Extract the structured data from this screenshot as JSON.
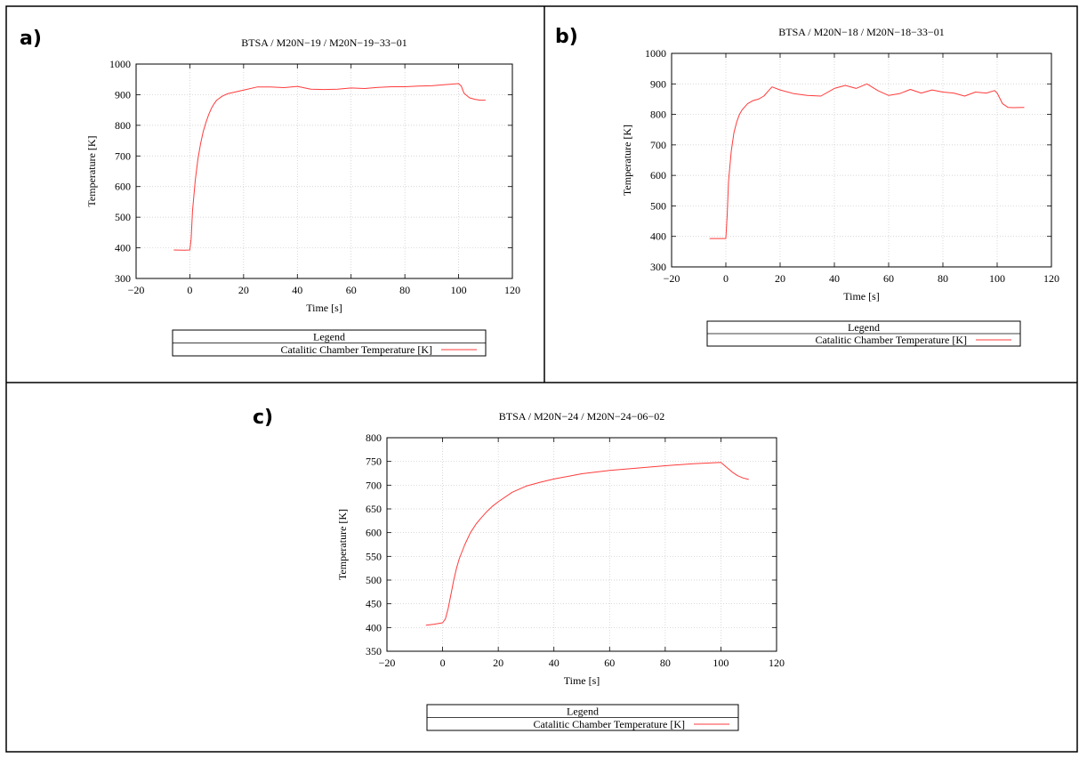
{
  "colors": {
    "series": "#ff3b3b",
    "grid": "#c8c8c8",
    "frame": "#000000"
  },
  "chart_data": [
    {
      "type": "line",
      "panel": "a)",
      "title": "BTSA / M20N−19 / M20N−19−33−01",
      "xlabel": "Time [s]",
      "ylabel": "Temperature [K]",
      "xlim": [
        -20,
        120
      ],
      "ylim": [
        300,
        1000
      ],
      "xticks": [
        -20,
        0,
        20,
        40,
        60,
        80,
        100,
        120
      ],
      "yticks": [
        300,
        400,
        500,
        600,
        700,
        800,
        900,
        1000
      ],
      "grid": true,
      "legend": {
        "title": "Legend",
        "position": "bottom",
        "entries": [
          "Catalitic Chamber Temperature [K]"
        ]
      },
      "series": [
        {
          "name": "Catalitic Chamber Temperature [K]",
          "x": [
            -6,
            -2,
            0,
            0.5,
            1,
            2,
            3,
            4,
            5,
            6,
            7,
            8,
            9,
            10,
            12,
            14,
            16,
            18,
            20,
            25,
            30,
            35,
            40,
            45,
            50,
            55,
            60,
            65,
            70,
            75,
            80,
            85,
            90,
            95,
            100,
            101,
            102,
            104,
            106,
            108,
            110
          ],
          "y": [
            393,
            392,
            393,
            430,
            520,
            620,
            690,
            740,
            780,
            810,
            835,
            855,
            870,
            882,
            895,
            903,
            907,
            911,
            915,
            925,
            925,
            923,
            927,
            918,
            917,
            918,
            922,
            920,
            924,
            926,
            926,
            928,
            929,
            933,
            936,
            928,
            905,
            890,
            885,
            882,
            882
          ]
        }
      ]
    },
    {
      "type": "line",
      "panel": "b)",
      "title": "BTSA / M20N−18 / M20N−18−33−01",
      "xlabel": "Time [s]",
      "ylabel": "Temperature [K]",
      "xlim": [
        -20,
        120
      ],
      "ylim": [
        300,
        1000
      ],
      "xticks": [
        -20,
        0,
        20,
        40,
        60,
        80,
        100,
        120
      ],
      "yticks": [
        300,
        400,
        500,
        600,
        700,
        800,
        900,
        1000
      ],
      "grid": true,
      "legend": {
        "title": "Legend",
        "position": "bottom",
        "entries": [
          "Catalitic Chamber Temperature [K]"
        ]
      },
      "series": [
        {
          "name": "Catalitic Chamber Temperature [K]",
          "x": [
            -6,
            -2,
            0,
            0.5,
            1,
            2,
            3,
            4,
            5,
            6,
            8,
            10,
            12,
            14,
            16,
            17,
            20,
            25,
            30,
            35,
            40,
            44,
            48,
            52,
            56,
            60,
            64,
            68,
            72,
            76,
            80,
            84,
            88,
            92,
            96,
            99,
            100,
            102,
            104,
            106,
            110
          ],
          "y": [
            393,
            393,
            393,
            470,
            580,
            680,
            740,
            775,
            800,
            815,
            835,
            845,
            850,
            860,
            880,
            890,
            880,
            868,
            862,
            860,
            885,
            895,
            885,
            900,
            878,
            862,
            868,
            882,
            870,
            880,
            873,
            870,
            860,
            873,
            870,
            878,
            870,
            835,
            823,
            822,
            823
          ]
        }
      ]
    },
    {
      "type": "line",
      "panel": "c)",
      "title": "BTSA / M20N−24 / M20N−24−06−02",
      "xlabel": "Time [s]",
      "ylabel": "Temperature [K]",
      "xlim": [
        -20,
        120
      ],
      "ylim": [
        350,
        800
      ],
      "xticks": [
        -20,
        0,
        20,
        40,
        60,
        80,
        100,
        120
      ],
      "yticks": [
        350,
        400,
        450,
        500,
        550,
        600,
        650,
        700,
        750,
        800
      ],
      "grid": true,
      "legend": {
        "title": "Legend",
        "position": "bottom",
        "entries": [
          "Catalitic Chamber Temperature [K]"
        ]
      },
      "series": [
        {
          "name": "Catalitic Chamber Temperature [K]",
          "x": [
            -6,
            -3,
            0,
            1,
            2,
            3,
            4,
            5,
            6,
            8,
            10,
            12,
            14,
            16,
            18,
            20,
            25,
            30,
            35,
            40,
            50,
            60,
            70,
            80,
            90,
            100,
            102,
            104,
            106,
            108,
            110
          ],
          "y": [
            405,
            407,
            410,
            418,
            440,
            470,
            500,
            525,
            545,
            575,
            600,
            618,
            632,
            645,
            656,
            665,
            685,
            698,
            706,
            713,
            724,
            731,
            736,
            741,
            745,
            748,
            738,
            728,
            720,
            715,
            712
          ]
        }
      ]
    }
  ]
}
